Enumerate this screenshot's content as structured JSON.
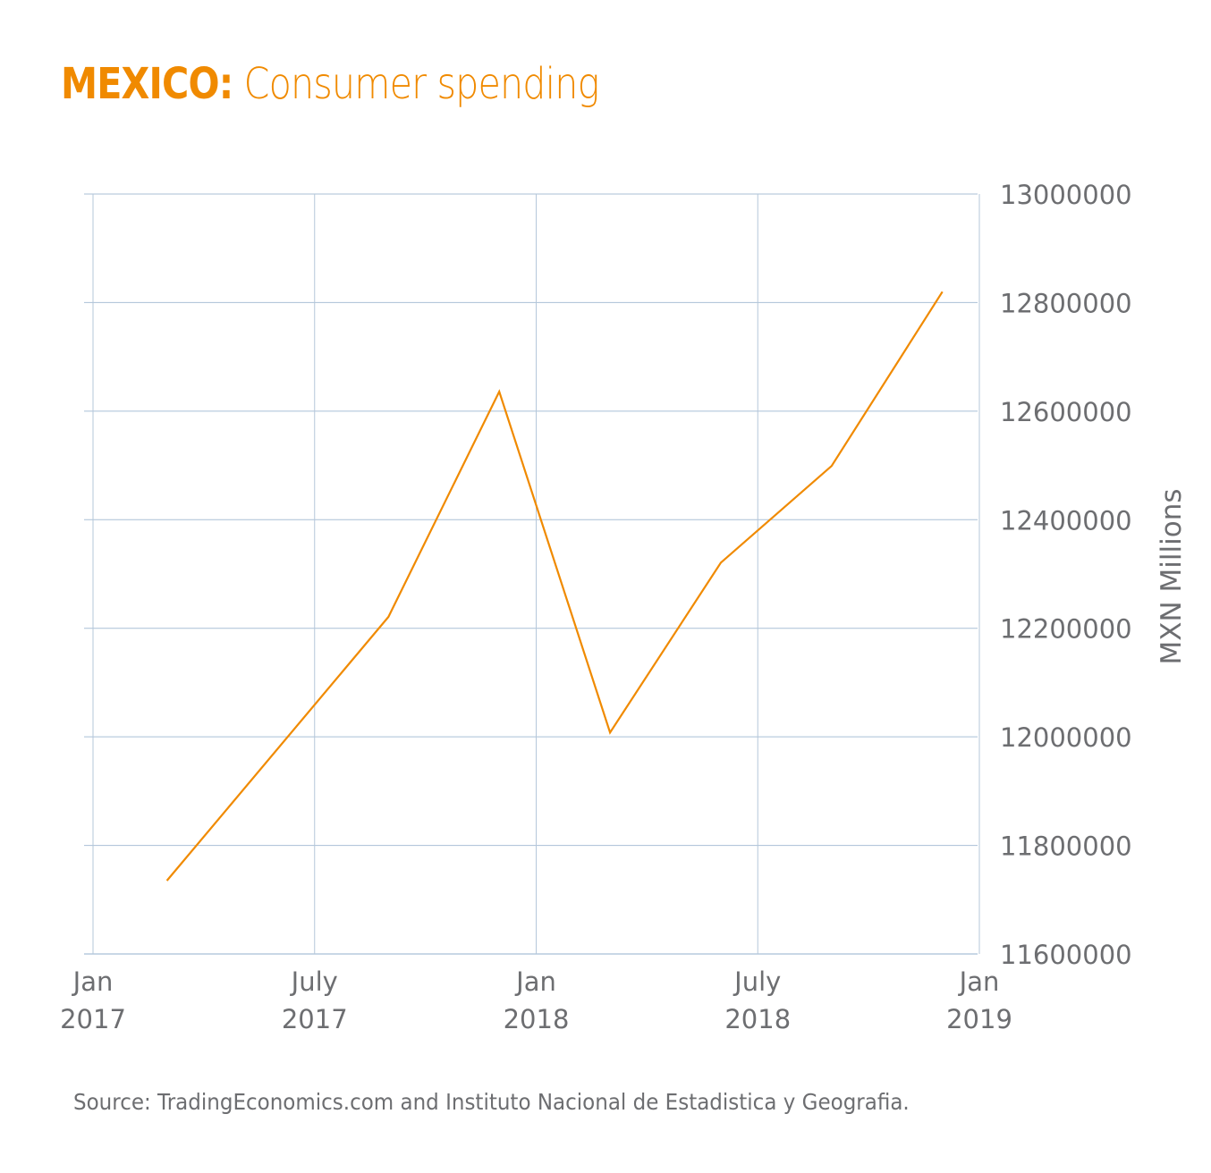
{
  "title": {
    "bold": "MEXICO:",
    "rest": " Consumer spending"
  },
  "source": "Source: TradingEconomics.com and Instituto Nacional de Estadistica y Geografia.",
  "chart_data": {
    "type": "line",
    "title": "MEXICO: Consumer spending",
    "xlabel": "",
    "ylabel": "MXN Millions",
    "ylim": [
      11600000,
      13000000
    ],
    "xlim": [
      "2017-01",
      "2019-01"
    ],
    "grid": true,
    "y_axis_position": "right",
    "yticks": [
      13000000,
      12800000,
      12600000,
      12400000,
      12200000,
      12000000,
      11800000,
      11600000
    ],
    "ytick_labels": [
      "13000000",
      "12800000",
      "12600000",
      "12400000",
      "12200000",
      "12000000",
      "11800000",
      "11600000"
    ],
    "xticks": [
      {
        "date": "2017-01",
        "line1": "Jan",
        "line2": "2017"
      },
      {
        "date": "2017-07",
        "line1": "July",
        "line2": "2017"
      },
      {
        "date": "2018-01",
        "line1": "Jan",
        "line2": "2018"
      },
      {
        "date": "2018-07",
        "line1": "July",
        "line2": "2018"
      },
      {
        "date": "2019-01",
        "line1": "Jan",
        "line2": "2019"
      }
    ],
    "series": [
      {
        "name": "Consumer spending",
        "color": "#f08a00",
        "x": [
          "2017-03",
          "2017-09",
          "2017-12",
          "2018-03",
          "2018-06",
          "2018-09",
          "2018-12"
        ],
        "values": [
          11735000,
          12221000,
          12636000,
          12008000,
          12321000,
          12499000,
          12820000
        ]
      }
    ]
  }
}
